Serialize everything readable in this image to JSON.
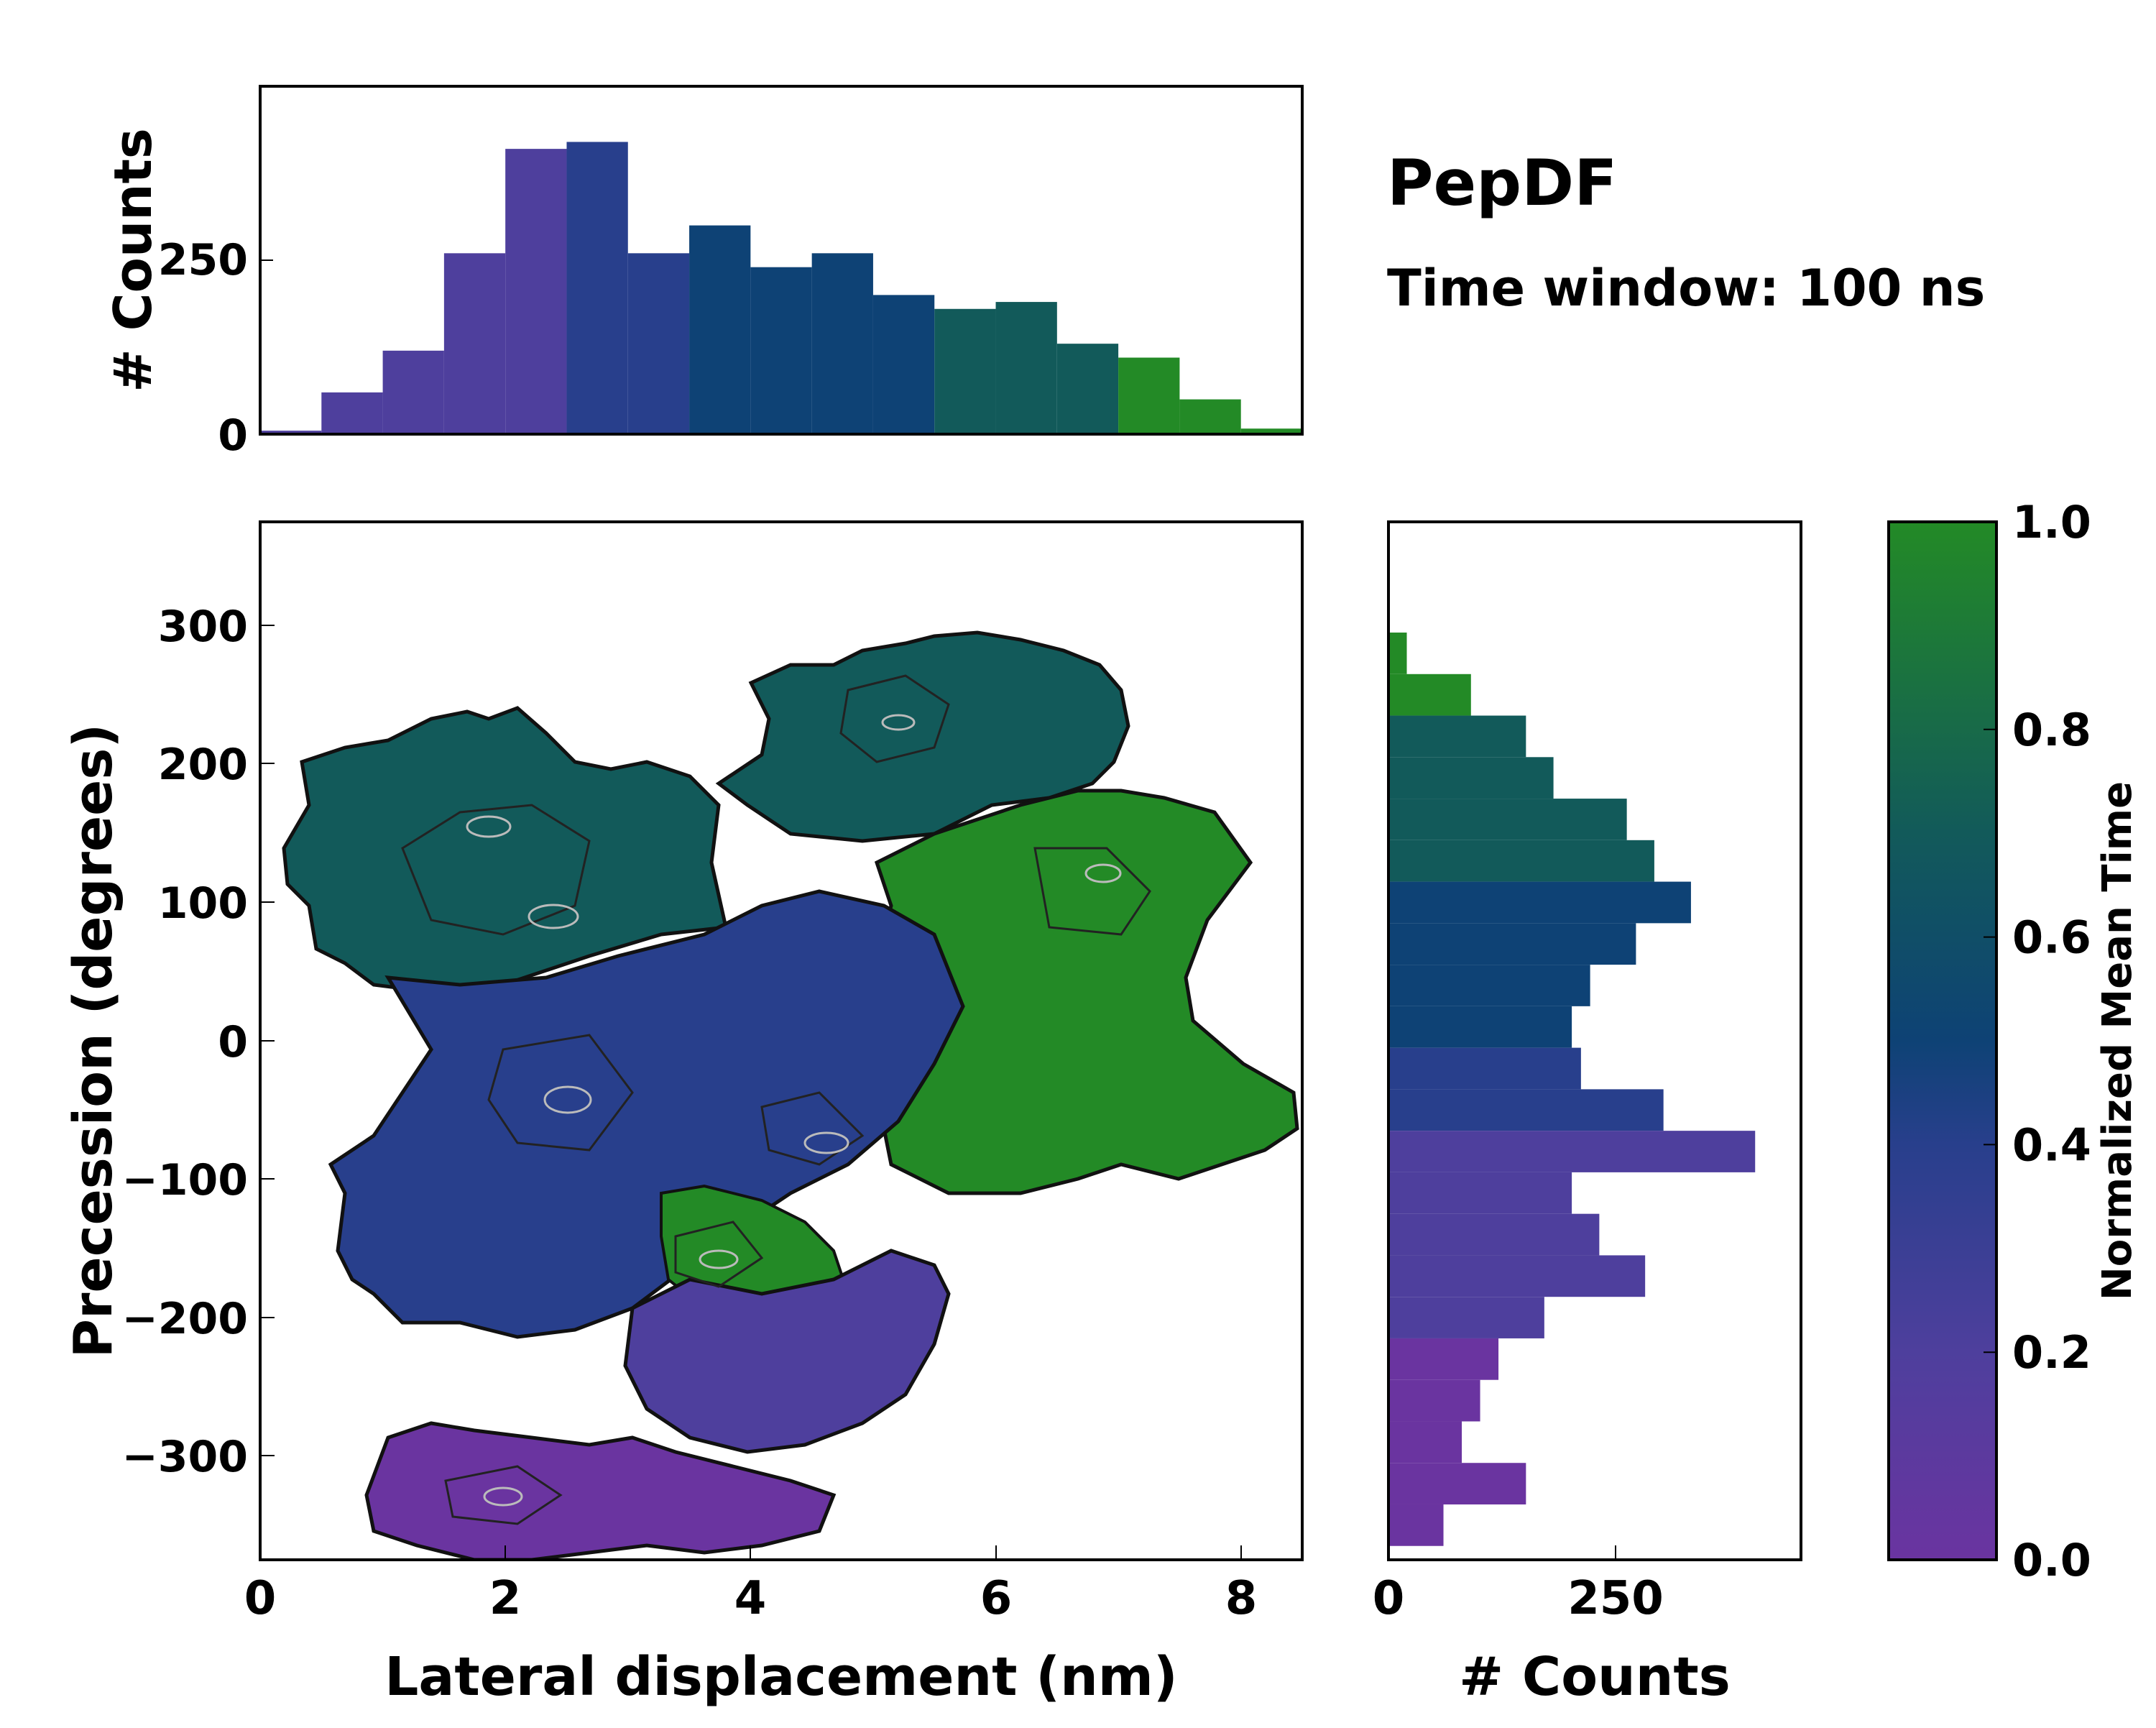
{
  "title": "PepDF",
  "subtitle": "Time window: 100 ns",
  "colors": {
    "c0": "#6a34a0",
    "c02": "#4e3f9d",
    "c04": "#283f8c",
    "c05": "#0e4275",
    "c07": "#125a5a",
    "c1": "#238a26"
  },
  "chart_data": [
    {
      "id": "main",
      "type": "heatmap",
      "xlabel": "Lateral displacement (nm)",
      "ylabel": "Precession (degrees)",
      "xlim": [
        0,
        8.5
      ],
      "ylim": [
        -375,
        375
      ],
      "xticks": [
        "0",
        "2",
        "4",
        "6",
        "8"
      ],
      "yticks": [
        "300",
        "200",
        "100",
        "0",
        "−100",
        "−200",
        "−300"
      ],
      "description_regions": [
        {
          "x": [
            0.5,
            3.6
          ],
          "y": [
            70,
            230
          ],
          "time": 0.65
        },
        {
          "x": [
            4.2,
            7.2
          ],
          "y": [
            150,
            290
          ],
          "time": 0.72
        },
        {
          "x": [
            5.0,
            8.3
          ],
          "y": [
            -100,
            200
          ],
          "time": 0.9
        },
        {
          "x": [
            0.8,
            5.5
          ],
          "y": [
            -220,
            90
          ],
          "time": 0.38
        },
        {
          "x": [
            3.4,
            4.8
          ],
          "y": [
            -190,
            -120
          ],
          "time": 0.95
        },
        {
          "x": [
            1.0,
            4.8
          ],
          "y": [
            -360,
            -260
          ],
          "time": 0.12
        }
      ]
    },
    {
      "id": "top-histogram",
      "type": "bar",
      "ylabel": "# Counts",
      "yticks": [
        "0",
        "250"
      ],
      "ylim": [
        0,
        500
      ],
      "x_range": [
        0,
        8.5
      ],
      "bins_nm": [
        0.5,
        1.0,
        1.5,
        2.0,
        2.5,
        3.0,
        3.5,
        4.0,
        4.5,
        5.0,
        5.5,
        6.0,
        6.5,
        7.0,
        7.5,
        8.0,
        8.5
      ],
      "counts": [
        5,
        60,
        120,
        260,
        410,
        420,
        260,
        300,
        240,
        260,
        200,
        180,
        190,
        130,
        110,
        50,
        8
      ]
    },
    {
      "id": "right-histogram",
      "type": "bar",
      "xlabel": "# Counts",
      "xticks": [
        "0",
        "250"
      ],
      "xlim": [
        0,
        450
      ],
      "bins_deg": [
        280,
        250,
        220,
        190,
        160,
        130,
        100,
        70,
        40,
        10,
        -20,
        -50,
        -80,
        -110,
        -140,
        -170,
        -200,
        -230,
        -260,
        -290,
        -320,
        -350
      ],
      "counts": [
        20,
        90,
        150,
        180,
        260,
        290,
        330,
        270,
        220,
        200,
        210,
        300,
        400,
        200,
        230,
        280,
        170,
        120,
        100,
        80,
        150,
        60
      ]
    },
    {
      "id": "colorbar",
      "type": "colorbar",
      "label": "Normalized Mean Time",
      "range": [
        0.0,
        1.0
      ],
      "ticks": [
        "1.0",
        "0.8",
        "0.6",
        "0.4",
        "0.2",
        "0.0"
      ]
    }
  ]
}
